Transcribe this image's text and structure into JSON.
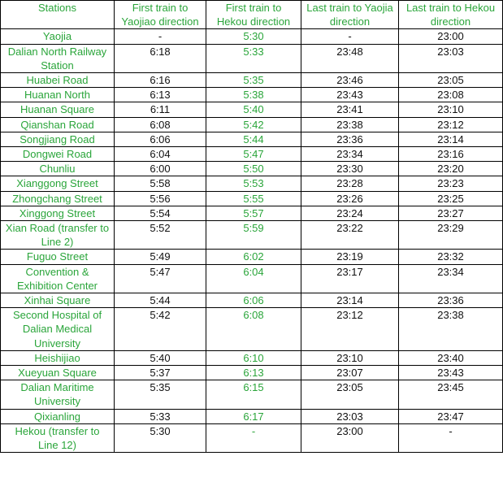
{
  "table": {
    "header": [
      "Stations",
      "First train to Yaojiao direction",
      "First train to Hekou direction",
      "Last train to Yaojia direction",
      "Last train to Hekou direction"
    ],
    "rows": [
      [
        "Yaojia",
        "-",
        "5:30",
        "-",
        "23:00"
      ],
      [
        "Dalian North Railway Station",
        "6:18",
        "5:33",
        "23:48",
        "23:03"
      ],
      [
        "Huabei Road",
        "6:16",
        "5:35",
        "23:46",
        "23:05"
      ],
      [
        "Huanan North",
        "6:13",
        "5:38",
        "23:43",
        "23:08"
      ],
      [
        "Huanan Square",
        "6:11",
        "5:40",
        "23:41",
        "23:10"
      ],
      [
        "Qianshan Road",
        "6:08",
        "5:42",
        "23:38",
        "23:12"
      ],
      [
        "Songjiang Road",
        "6:06",
        "5:44",
        "23:36",
        "23:14"
      ],
      [
        "Dongwei Road",
        "6:04",
        "5:47",
        "23:34",
        "23:16"
      ],
      [
        "Chunliu",
        "6:00",
        "5:50",
        "23:30",
        "23:20"
      ],
      [
        "Xianggong Street",
        "5:58",
        "5:53",
        "23:28",
        "23:23"
      ],
      [
        "Zhongchang Street",
        "5:56",
        "5:55",
        "23:26",
        "23:25"
      ],
      [
        "Xinggong Street",
        "5:54",
        "5:57",
        "23:24",
        "23:27"
      ],
      [
        "Xian Road (transfer to Line 2)",
        "5:52",
        "5:59",
        "23:22",
        "23:29"
      ],
      [
        "Fuguo Street",
        "5:49",
        "6:02",
        "23:19",
        "23:32"
      ],
      [
        "Convention & Exhibition Center",
        "5:47",
        "6:04",
        "23:17",
        "23:34"
      ],
      [
        "Xinhai Square",
        "5:44",
        "6:06",
        "23:14",
        "23:36"
      ],
      [
        "Second Hospital of Dalian Medical University",
        "5:42",
        "6:08",
        "23:12",
        "23:38"
      ],
      [
        "Heishijiao",
        "5:40",
        "6:10",
        "23:10",
        "23:40"
      ],
      [
        "Xueyuan Square",
        "5:37",
        "6:13",
        "23:07",
        "23:43"
      ],
      [
        "Dalian Maritime University",
        "5:35",
        "6:15",
        "23:05",
        "23:45"
      ],
      [
        "Qixianling",
        "5:33",
        "6:17",
        "23:03",
        "23:47"
      ],
      [
        "Hekou (transfer to Line 12)",
        "5:30",
        "-",
        "23:00",
        "-"
      ]
    ]
  }
}
